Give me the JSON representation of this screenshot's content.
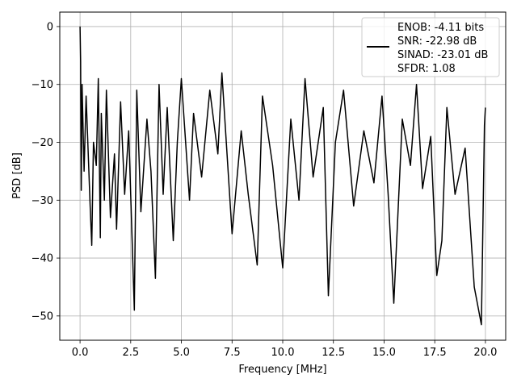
{
  "chart_data": {
    "type": "line",
    "title": "",
    "xlabel": "Frequency [MHz]",
    "ylabel": "PSD [dB]",
    "xlim": [
      -1.0,
      21.0
    ],
    "ylim": [
      -54.2,
      2.5
    ],
    "xticks": [
      0.0,
      2.5,
      5.0,
      7.5,
      10.0,
      12.5,
      15.0,
      17.5,
      20.0
    ],
    "xtick_labels": [
      "0.0",
      "2.5",
      "5.0",
      "7.5",
      "10.0",
      "12.5",
      "15.0",
      "17.5",
      "20.0"
    ],
    "yticks": [
      0,
      -10,
      -20,
      -30,
      -40,
      -50
    ],
    "ytick_labels": [
      "0",
      "−10",
      "−20",
      "−30",
      "−40",
      "−50"
    ],
    "grid": true,
    "legend_position": "top-right",
    "legend": {
      "entries": [
        "ENOB: -4.11 bits",
        "SNR: -22.98 dB",
        "SINAD: -23.01 dB",
        "SFDR: 1.08"
      ]
    },
    "series": [
      {
        "color": "#000000",
        "x": [
          0.0,
          0.03,
          0.06,
          0.1,
          0.2,
          0.3,
          0.5,
          0.58,
          0.66,
          0.8,
          0.9,
          1.0,
          1.05,
          1.2,
          1.3,
          1.5,
          1.7,
          1.8,
          2.0,
          2.2,
          2.4,
          2.68,
          2.8,
          3.0,
          3.3,
          3.5,
          3.72,
          3.9,
          4.1,
          4.3,
          4.6,
          4.8,
          5.0,
          5.4,
          5.6,
          6.0,
          6.4,
          6.8,
          7.0,
          7.5,
          7.95,
          8.3,
          8.74,
          9.0,
          9.5,
          10.0,
          10.4,
          10.8,
          11.1,
          11.5,
          12.0,
          12.25,
          12.6,
          13.0,
          13.5,
          14.0,
          14.5,
          14.9,
          15.2,
          15.48,
          15.9,
          16.3,
          16.6,
          16.9,
          17.3,
          17.6,
          17.85,
          18.1,
          18.5,
          19.0,
          19.45,
          19.8,
          19.95,
          20.0
        ],
        "y": [
          0.0,
          -6,
          -28.3,
          -10,
          -25,
          -12,
          -31,
          -37.8,
          -20,
          -24,
          -9,
          -36.5,
          -15,
          -30,
          -11,
          -33,
          -22,
          -35,
          -13,
          -29,
          -18,
          -49.0,
          -11,
          -32,
          -16,
          -25,
          -43.5,
          -10,
          -29,
          -14,
          -37,
          -20,
          -9,
          -30,
          -15,
          -26,
          -11,
          -22,
          -8,
          -35.8,
          -18,
          -29,
          -41.2,
          -12,
          -24,
          -41.7,
          -16,
          -30,
          -9,
          -26,
          -14,
          -46.5,
          -20,
          -11,
          -31,
          -18,
          -27,
          -12,
          -29,
          -47.8,
          -16,
          -24,
          -10,
          -28,
          -19,
          -43,
          -37,
          -14,
          -29,
          -21,
          -45,
          -51.5,
          -17,
          -14
        ]
      }
    ]
  }
}
